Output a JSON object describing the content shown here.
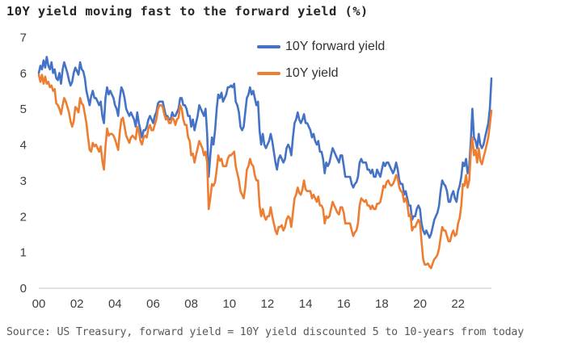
{
  "chart": {
    "title": "10Y yield moving fast to the forward yield (%)",
    "source": "Source: US Treasury, forward yield = 10Y yield discounted 5 to 10-years from today"
  },
  "colors": {
    "blue": "#4472C4",
    "orange": "#ED7D31",
    "axis_line": "#D9D9D9",
    "axis_text": "#3F3F3F",
    "title_text": "#262626",
    "source_text": "#595959"
  },
  "chart_data": {
    "type": "line",
    "title": "10Y yield moving fast to the forward yield (%)",
    "x_unit": "monthly",
    "x_start": "2000-01",
    "x_end": "2023-10",
    "xlabel": "",
    "ylabel": "",
    "ylim": [
      0,
      7
    ],
    "grid": false,
    "legend_position": "top-center",
    "xtick_labels": [
      "00",
      "02",
      "04",
      "06",
      "08",
      "10",
      "12",
      "14",
      "16",
      "18",
      "20",
      "22"
    ],
    "ytick_labels": [
      "0",
      "1",
      "2",
      "3",
      "4",
      "5",
      "6",
      "7"
    ],
    "series": [
      {
        "name": "10Y forward yield",
        "color": "#4472C4",
        "values": [
          6.0,
          6.2,
          6.1,
          6.35,
          6.15,
          6.45,
          6.2,
          6.1,
          6.3,
          6.0,
          6.1,
          5.85,
          5.8,
          6.0,
          5.7,
          6.1,
          6.3,
          6.15,
          6.0,
          5.8,
          5.65,
          5.75,
          6.0,
          6.15,
          6.05,
          5.95,
          6.3,
          6.1,
          6.05,
          5.85,
          5.5,
          5.3,
          5.1,
          5.35,
          5.5,
          5.3,
          5.3,
          5.2,
          5.1,
          5.2,
          4.8,
          4.6,
          5.3,
          5.6,
          5.4,
          5.5,
          5.4,
          5.3,
          5.1,
          5.0,
          4.8,
          5.3,
          5.6,
          5.5,
          5.3,
          5.0,
          4.9,
          4.8,
          4.9,
          4.8,
          4.7,
          4.5,
          4.9,
          4.6,
          4.4,
          4.2,
          4.4,
          4.4,
          4.5,
          4.7,
          4.8,
          4.7,
          4.6,
          4.8,
          4.9,
          5.15,
          5.2,
          5.2,
          5.2,
          5.0,
          4.8,
          4.8,
          4.7,
          4.7,
          4.9,
          4.8,
          4.8,
          4.9,
          5.0,
          5.3,
          5.3,
          5.1,
          5.1,
          5.0,
          4.8,
          4.8,
          4.5,
          4.7,
          4.4,
          4.6,
          4.8,
          5.1,
          5.0,
          4.9,
          4.8,
          5.0,
          4.3,
          3.1,
          3.7,
          4.2,
          4.0,
          4.4,
          5.0,
          5.4,
          5.3,
          5.45,
          5.2,
          5.3,
          5.4,
          5.6,
          5.6,
          5.65,
          5.6,
          5.7,
          5.2,
          5.1,
          4.9,
          4.5,
          4.4,
          4.5,
          4.9,
          5.3,
          5.4,
          5.6,
          5.4,
          5.5,
          5.3,
          5.1,
          5.2,
          4.4,
          4.0,
          4.3,
          4.0,
          3.9,
          4.0,
          4.1,
          4.3,
          4.1,
          3.8,
          3.5,
          3.3,
          3.6,
          3.7,
          3.6,
          3.5,
          3.6,
          3.9,
          4.0,
          3.9,
          3.7,
          4.2,
          4.6,
          4.7,
          4.9,
          4.7,
          4.6,
          4.7,
          4.85,
          4.6,
          4.6,
          4.5,
          4.4,
          4.2,
          4.3,
          4.1,
          4.0,
          4.1,
          3.8,
          3.8,
          3.6,
          3.2,
          3.5,
          3.4,
          3.5,
          3.7,
          3.9,
          3.8,
          3.7,
          3.6,
          3.5,
          3.7,
          3.7,
          3.4,
          3.1,
          3.1,
          3.1,
          3.1,
          2.9,
          2.8,
          2.9,
          2.95,
          3.1,
          3.5,
          3.6,
          3.5,
          3.5,
          3.5,
          3.3,
          3.3,
          3.2,
          3.3,
          3.1,
          3.1,
          3.3,
          3.2,
          3.1,
          3.3,
          3.5,
          3.4,
          3.5,
          3.5,
          3.4,
          3.3,
          3.2,
          3.3,
          3.5,
          3.3,
          3.0,
          2.9,
          2.9,
          2.6,
          2.7,
          2.5,
          2.3,
          2.3,
          1.9,
          2.0,
          2.0,
          2.2,
          2.3,
          2.2,
          1.8,
          1.6,
          1.5,
          1.6,
          1.5,
          1.4,
          1.5,
          1.7,
          1.9,
          2.0,
          2.1,
          2.3,
          2.7,
          3.0,
          2.9,
          2.85,
          2.7,
          2.4,
          2.4,
          2.6,
          2.7,
          2.5,
          2.4,
          2.7,
          2.85,
          3.1,
          3.5,
          3.4,
          3.6,
          3.2,
          3.4,
          4.1,
          5.0,
          4.2,
          4.1,
          3.9,
          4.3,
          4.0,
          3.9,
          4.0,
          4.2,
          4.4,
          4.6,
          5.0,
          5.85
        ]
      },
      {
        "name": "10Y yield",
        "color": "#ED7D31",
        "values": [
          5.95,
          5.75,
          5.95,
          5.7,
          5.9,
          5.7,
          5.75,
          5.6,
          5.65,
          5.5,
          5.55,
          5.15,
          5.1,
          5.0,
          4.85,
          5.1,
          5.3,
          5.2,
          5.05,
          4.9,
          4.65,
          4.5,
          4.65,
          5.05,
          5.0,
          4.9,
          5.3,
          5.15,
          5.1,
          4.85,
          4.6,
          4.2,
          3.85,
          3.8,
          4.05,
          3.95,
          4.0,
          3.9,
          3.8,
          3.95,
          3.55,
          3.3,
          3.95,
          4.45,
          4.25,
          4.3,
          4.3,
          4.25,
          4.15,
          4.0,
          3.85,
          4.35,
          4.7,
          4.75,
          4.5,
          4.25,
          4.15,
          4.05,
          4.2,
          4.25,
          4.2,
          4.15,
          4.5,
          4.35,
          4.1,
          4.0,
          4.2,
          4.25,
          4.2,
          4.45,
          4.55,
          4.4,
          4.4,
          4.55,
          4.7,
          5.0,
          5.1,
          5.1,
          5.05,
          4.85,
          4.7,
          4.75,
          4.6,
          4.6,
          4.75,
          4.7,
          4.55,
          4.7,
          4.75,
          5.1,
          5.0,
          4.7,
          4.55,
          4.55,
          4.2,
          4.1,
          3.7,
          3.75,
          3.5,
          3.7,
          3.9,
          4.1,
          4.0,
          3.9,
          3.7,
          3.8,
          3.5,
          2.2,
          2.5,
          2.9,
          2.85,
          2.95,
          3.3,
          3.7,
          3.55,
          3.6,
          3.4,
          3.4,
          3.4,
          3.6,
          3.7,
          3.7,
          3.75,
          3.8,
          3.4,
          3.2,
          3.0,
          2.7,
          2.6,
          2.5,
          2.8,
          3.3,
          3.4,
          3.6,
          3.45,
          3.4,
          3.15,
          3.0,
          3.0,
          2.3,
          2.0,
          2.2,
          2.0,
          1.9,
          2.0,
          2.0,
          2.25,
          2.0,
          1.8,
          1.6,
          1.5,
          1.7,
          1.7,
          1.75,
          1.6,
          1.7,
          1.9,
          2.0,
          1.95,
          1.7,
          2.1,
          2.5,
          2.6,
          2.8,
          2.65,
          2.6,
          2.75,
          3.0,
          2.75,
          2.7,
          2.7,
          2.7,
          2.5,
          2.6,
          2.5,
          2.4,
          2.55,
          2.3,
          2.3,
          2.2,
          1.8,
          2.0,
          1.95,
          2.0,
          2.2,
          2.4,
          2.3,
          2.2,
          2.1,
          2.05,
          2.25,
          2.25,
          2.1,
          1.8,
          1.8,
          1.8,
          1.8,
          1.6,
          1.45,
          1.55,
          1.6,
          1.8,
          2.3,
          2.5,
          2.45,
          2.4,
          2.45,
          2.3,
          2.3,
          2.2,
          2.3,
          2.2,
          2.2,
          2.35,
          2.35,
          2.4,
          2.6,
          2.85,
          2.8,
          2.95,
          3.0,
          2.9,
          2.85,
          2.9,
          3.0,
          3.15,
          3.05,
          2.8,
          2.7,
          2.65,
          2.4,
          2.5,
          2.35,
          2.0,
          2.05,
          1.6,
          1.7,
          1.7,
          1.8,
          1.9,
          1.8,
          1.3,
          0.8,
          0.65,
          0.65,
          0.68,
          0.6,
          0.55,
          0.68,
          0.8,
          0.85,
          0.92,
          1.1,
          1.4,
          1.7,
          1.6,
          1.6,
          1.45,
          1.3,
          1.3,
          1.5,
          1.6,
          1.45,
          1.5,
          1.8,
          1.95,
          2.3,
          2.9,
          2.85,
          3.15,
          2.8,
          3.0,
          3.8,
          4.2,
          3.7,
          3.85,
          3.5,
          3.9,
          3.55,
          3.45,
          3.65,
          3.8,
          4.0,
          4.2,
          4.55,
          4.95
        ]
      }
    ]
  }
}
